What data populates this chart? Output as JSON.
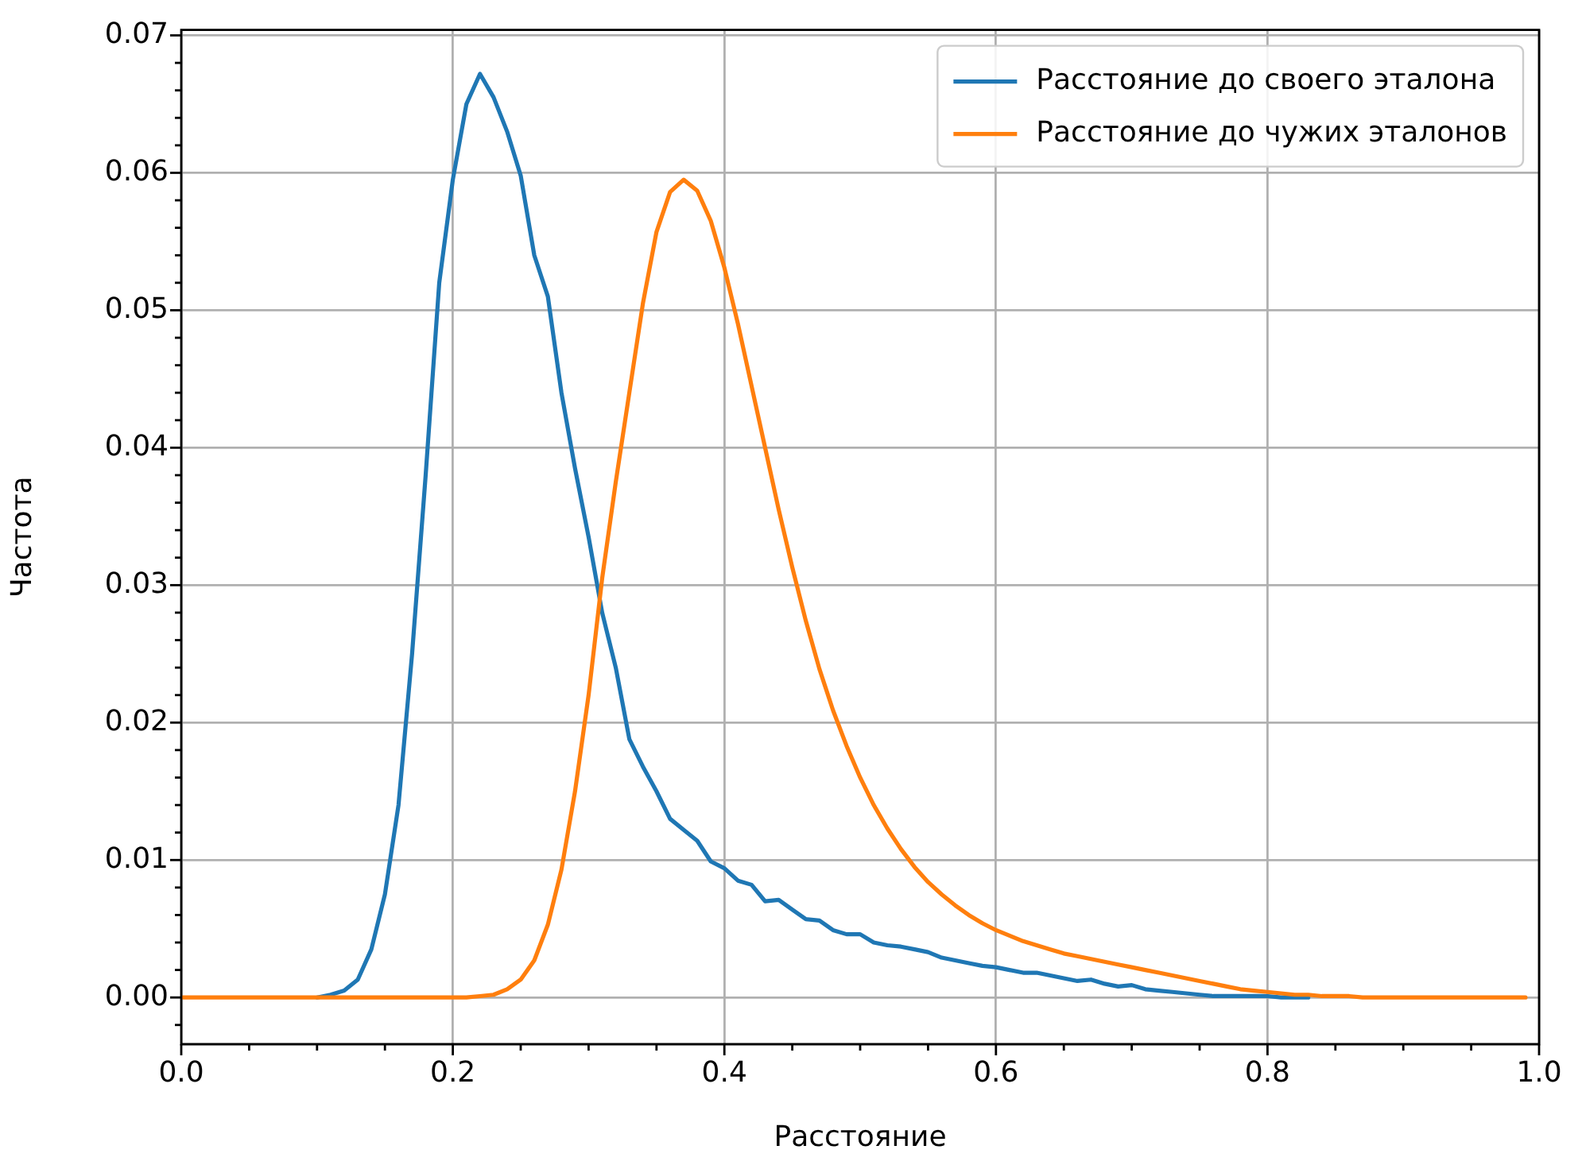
{
  "chart_data": {
    "type": "line",
    "xlabel": "Расстояние",
    "ylabel": "Частота",
    "x": [
      0,
      0.01,
      0.02,
      0.03,
      0.04,
      0.05,
      0.06,
      0.07,
      0.08,
      0.09,
      0.1,
      0.11,
      0.12,
      0.13,
      0.14,
      0.15,
      0.16,
      0.17,
      0.18,
      0.19,
      0.2,
      0.21,
      0.22,
      0.23,
      0.24,
      0.25,
      0.26,
      0.27,
      0.28,
      0.29,
      0.3,
      0.31,
      0.32,
      0.33,
      0.34,
      0.35,
      0.36,
      0.37,
      0.38,
      0.39,
      0.4,
      0.41,
      0.42,
      0.43,
      0.44,
      0.45,
      0.46,
      0.47,
      0.48,
      0.49,
      0.5,
      0.51,
      0.52,
      0.53,
      0.54,
      0.55,
      0.56,
      0.57,
      0.58,
      0.59,
      0.6,
      0.61,
      0.62,
      0.63,
      0.64,
      0.65,
      0.66,
      0.67,
      0.68,
      0.69,
      0.7,
      0.71,
      0.72,
      0.73,
      0.74,
      0.75,
      0.76,
      0.77,
      0.78,
      0.79,
      0.8,
      0.81,
      0.82,
      0.83,
      0.84,
      0.85,
      0.86,
      0.87,
      0.88,
      0.89,
      0.9,
      0.91,
      0.92,
      0.93,
      0.94,
      0.95,
      0.96,
      0.97,
      0.98,
      0.99
    ],
    "series": [
      {
        "name": "Расстояние до своего эталона",
        "color": "#1f77b4",
        "values": [
          null,
          null,
          null,
          null,
          null,
          null,
          null,
          null,
          null,
          null,
          0,
          0.0002,
          0.0005,
          0.0013,
          0.0035,
          0.0075,
          0.014,
          0.025,
          0.038,
          0.052,
          0.0595,
          0.065,
          0.0672,
          0.0655,
          0.063,
          0.0598,
          0.054,
          0.051,
          0.044,
          0.0385,
          0.0335,
          0.028,
          0.024,
          0.0188,
          0.0168,
          0.015,
          0.013,
          0.0122,
          0.0114,
          0.0099,
          0.0094,
          0.0085,
          0.0082,
          0.007,
          0.0071,
          0.0064,
          0.0057,
          0.0056,
          0.0049,
          0.0046,
          0.0046,
          0.004,
          0.0038,
          0.0037,
          0.0035,
          0.0033,
          0.0029,
          0.0027,
          0.0025,
          0.0023,
          0.0022,
          0.002,
          0.0018,
          0.0018,
          0.0016,
          0.0014,
          0.0012,
          0.0013,
          0.001,
          0.0008,
          0.0009,
          0.0006,
          0.0005,
          0.0004,
          0.0003,
          0.0002,
          0.0001,
          0.0001,
          0.0001,
          0.0001,
          0.0001,
          0,
          0,
          0,
          null,
          null,
          null,
          null,
          null,
          null,
          null,
          null,
          null,
          null,
          null,
          null,
          null,
          null,
          null,
          null
        ]
      },
      {
        "name": "Расстояние до чужих эталонов",
        "color": "#ff7f0e",
        "values": [
          0,
          0,
          0,
          0,
          0,
          0,
          0,
          0,
          0,
          0,
          0,
          0,
          0,
          0,
          0,
          0,
          0,
          0,
          0,
          0,
          0,
          0,
          0.0001,
          0.0002,
          0.0006,
          0.0013,
          0.0027,
          0.0053,
          0.0093,
          0.015,
          0.022,
          0.0305,
          0.0375,
          0.044,
          0.0505,
          0.0557,
          0.0586,
          0.0595,
          0.0587,
          0.0565,
          0.0531,
          0.049,
          0.0445,
          0.04,
          0.0355,
          0.0313,
          0.0274,
          0.0239,
          0.0209,
          0.0183,
          0.016,
          0.014,
          0.0123,
          0.0108,
          0.0095,
          0.0084,
          0.0075,
          0.0067,
          0.006,
          0.0054,
          0.0049,
          0.0045,
          0.0041,
          0.0038,
          0.0035,
          0.0032,
          0.003,
          0.0028,
          0.0026,
          0.0024,
          0.0022,
          0.002,
          0.0018,
          0.0016,
          0.0014,
          0.0012,
          0.001,
          0.0008,
          0.0006,
          0.0005,
          0.0004,
          0.0003,
          0.0002,
          0.0002,
          0.0001,
          0.0001,
          0.0001,
          0,
          0,
          0,
          0,
          0,
          0,
          0,
          0,
          0,
          0,
          0,
          0,
          0
        ]
      }
    ],
    "xlim": [
      0,
      1
    ],
    "xticks": [
      {
        "value": 0,
        "label": "0.0"
      },
      {
        "value": 0.05,
        "label": null
      },
      {
        "value": 0.1,
        "label": null
      },
      {
        "value": 0.15,
        "label": null
      },
      {
        "value": 0.2,
        "label": "0.2"
      },
      {
        "value": 0.25,
        "label": null
      },
      {
        "value": 0.3,
        "label": null
      },
      {
        "value": 0.35,
        "label": null
      },
      {
        "value": 0.4,
        "label": "0.4"
      },
      {
        "value": 0.45,
        "label": null
      },
      {
        "value": 0.5,
        "label": null
      },
      {
        "value": 0.55,
        "label": null
      },
      {
        "value": 0.6,
        "label": "0.6"
      },
      {
        "value": 0.65,
        "label": null
      },
      {
        "value": 0.7,
        "label": null
      },
      {
        "value": 0.75,
        "label": null
      },
      {
        "value": 0.8,
        "label": "0.8"
      },
      {
        "value": 0.85,
        "label": null
      },
      {
        "value": 0.9,
        "label": null
      },
      {
        "value": 0.95,
        "label": null
      },
      {
        "value": 1,
        "label": "1.0"
      }
    ],
    "ylim": [
      -0.0034,
      0.0704
    ],
    "yticks": [
      {
        "value": -0.002,
        "label": null
      },
      {
        "value": 0,
        "label": "0.00"
      },
      {
        "value": 0.002,
        "label": null
      },
      {
        "value": 0.004,
        "label": null
      },
      {
        "value": 0.006,
        "label": null
      },
      {
        "value": 0.008,
        "label": null
      },
      {
        "value": 0.01,
        "label": "0.01"
      },
      {
        "value": 0.012,
        "label": null
      },
      {
        "value": 0.014,
        "label": null
      },
      {
        "value": 0.016,
        "label": null
      },
      {
        "value": 0.018,
        "label": null
      },
      {
        "value": 0.02,
        "label": "0.02"
      },
      {
        "value": 0.022,
        "label": null
      },
      {
        "value": 0.024,
        "label": null
      },
      {
        "value": 0.026,
        "label": null
      },
      {
        "value": 0.028,
        "label": null
      },
      {
        "value": 0.03,
        "label": "0.03"
      },
      {
        "value": 0.032,
        "label": null
      },
      {
        "value": 0.034,
        "label": null
      },
      {
        "value": 0.036,
        "label": null
      },
      {
        "value": 0.038,
        "label": null
      },
      {
        "value": 0.04,
        "label": "0.04"
      },
      {
        "value": 0.042,
        "label": null
      },
      {
        "value": 0.044,
        "label": null
      },
      {
        "value": 0.046,
        "label": null
      },
      {
        "value": 0.048,
        "label": null
      },
      {
        "value": 0.05,
        "label": "0.05"
      },
      {
        "value": 0.052,
        "label": null
      },
      {
        "value": 0.054,
        "label": null
      },
      {
        "value": 0.056,
        "label": null
      },
      {
        "value": 0.058,
        "label": null
      },
      {
        "value": 0.06,
        "label": "0.06"
      },
      {
        "value": 0.062,
        "label": null
      },
      {
        "value": 0.064,
        "label": null
      },
      {
        "value": 0.066,
        "label": null
      },
      {
        "value": 0.068,
        "label": null
      },
      {
        "value": 0.07,
        "label": "0.07"
      }
    ],
    "grid": true,
    "legend": "top right",
    "marker": "none"
  }
}
